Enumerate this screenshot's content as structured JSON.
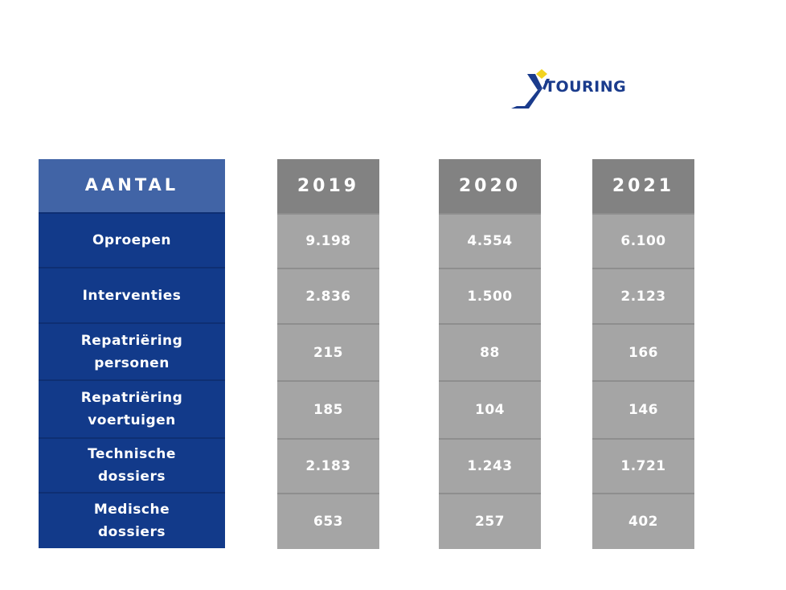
{
  "logo": {
    "text": "TOURING",
    "colors": {
      "navy": "#1a3b8c",
      "yellow": "#f2d320"
    }
  },
  "colors": {
    "label_header": "#4164a6",
    "label_body": "#123a8a",
    "year_header": "#828282",
    "year_body": "#a5a5a5"
  },
  "chart_data": {
    "type": "table",
    "header": "AANTAL",
    "years": [
      "2019",
      "2020",
      "2021"
    ],
    "rows": [
      {
        "label_lines": [
          "Oproepen"
        ],
        "values": [
          "9.198",
          "4.554",
          "6.100"
        ]
      },
      {
        "label_lines": [
          "Interventies"
        ],
        "values": [
          "2.836",
          "1.500",
          "2.123"
        ]
      },
      {
        "label_lines": [
          "Repatriëring",
          "personen"
        ],
        "values": [
          "215",
          "88",
          "166"
        ]
      },
      {
        "label_lines": [
          "Repatriëring",
          "voertuigen"
        ],
        "values": [
          "185",
          "104",
          "146"
        ]
      },
      {
        "label_lines": [
          "Technische",
          "dossiers"
        ],
        "values": [
          "2.183",
          "1.243",
          "1.721"
        ]
      },
      {
        "label_lines": [
          "Medische",
          "dossiers"
        ],
        "values": [
          "653",
          "257",
          "402"
        ]
      }
    ]
  }
}
